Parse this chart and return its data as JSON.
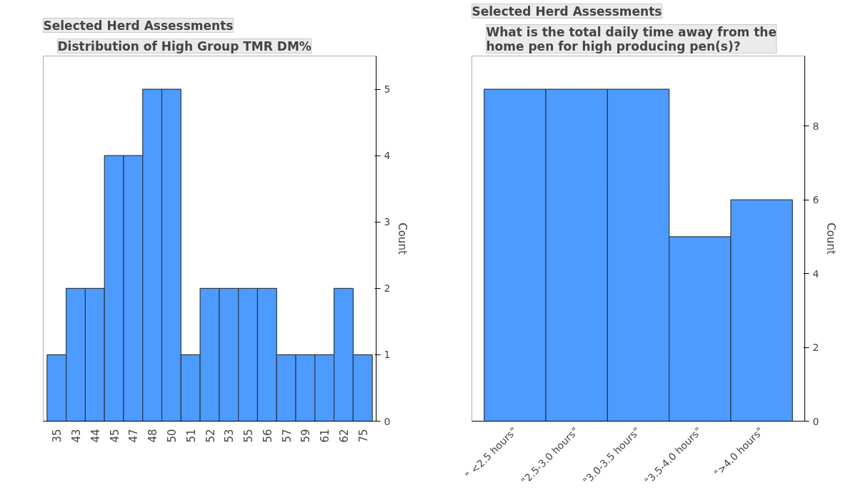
{
  "chart_data": [
    {
      "type": "bar",
      "title": "Selected Herd Assessments",
      "subtitle": "Distribution of High Group TMR DM%",
      "ylabel": "Count",
      "color": "#4d9bff",
      "categories": [
        "35",
        "43",
        "44",
        "45",
        "47",
        "48",
        "50",
        "51",
        "52",
        "53",
        "55",
        "56",
        "57",
        "59",
        "61",
        "62",
        "75"
      ],
      "values": [
        1,
        2,
        2,
        4,
        4,
        5,
        5,
        1,
        2,
        2,
        2,
        2,
        1,
        1,
        1,
        2,
        1
      ],
      "ylim": [
        0,
        5.5
      ],
      "yticks": [
        0,
        1,
        2,
        3,
        4,
        5
      ]
    },
    {
      "type": "bar",
      "title": "Selected Herd Assessments",
      "subtitle": "What is the total daily time away from the home pen for high producing pen(s)?",
      "ylabel": "Count",
      "color": "#4d9bff",
      "categories": [
        "\" <2.5 hours\"",
        "\"2.5-3.0 hours\"",
        "\"3.0-3.5 hours\"",
        "\"3.5-4.0 hours\"",
        "\">4.0 hours\""
      ],
      "values": [
        9,
        9,
        9,
        5,
        6
      ],
      "ylim": [
        0,
        9.9
      ],
      "yticks": [
        0,
        2,
        4,
        6,
        8
      ]
    }
  ]
}
